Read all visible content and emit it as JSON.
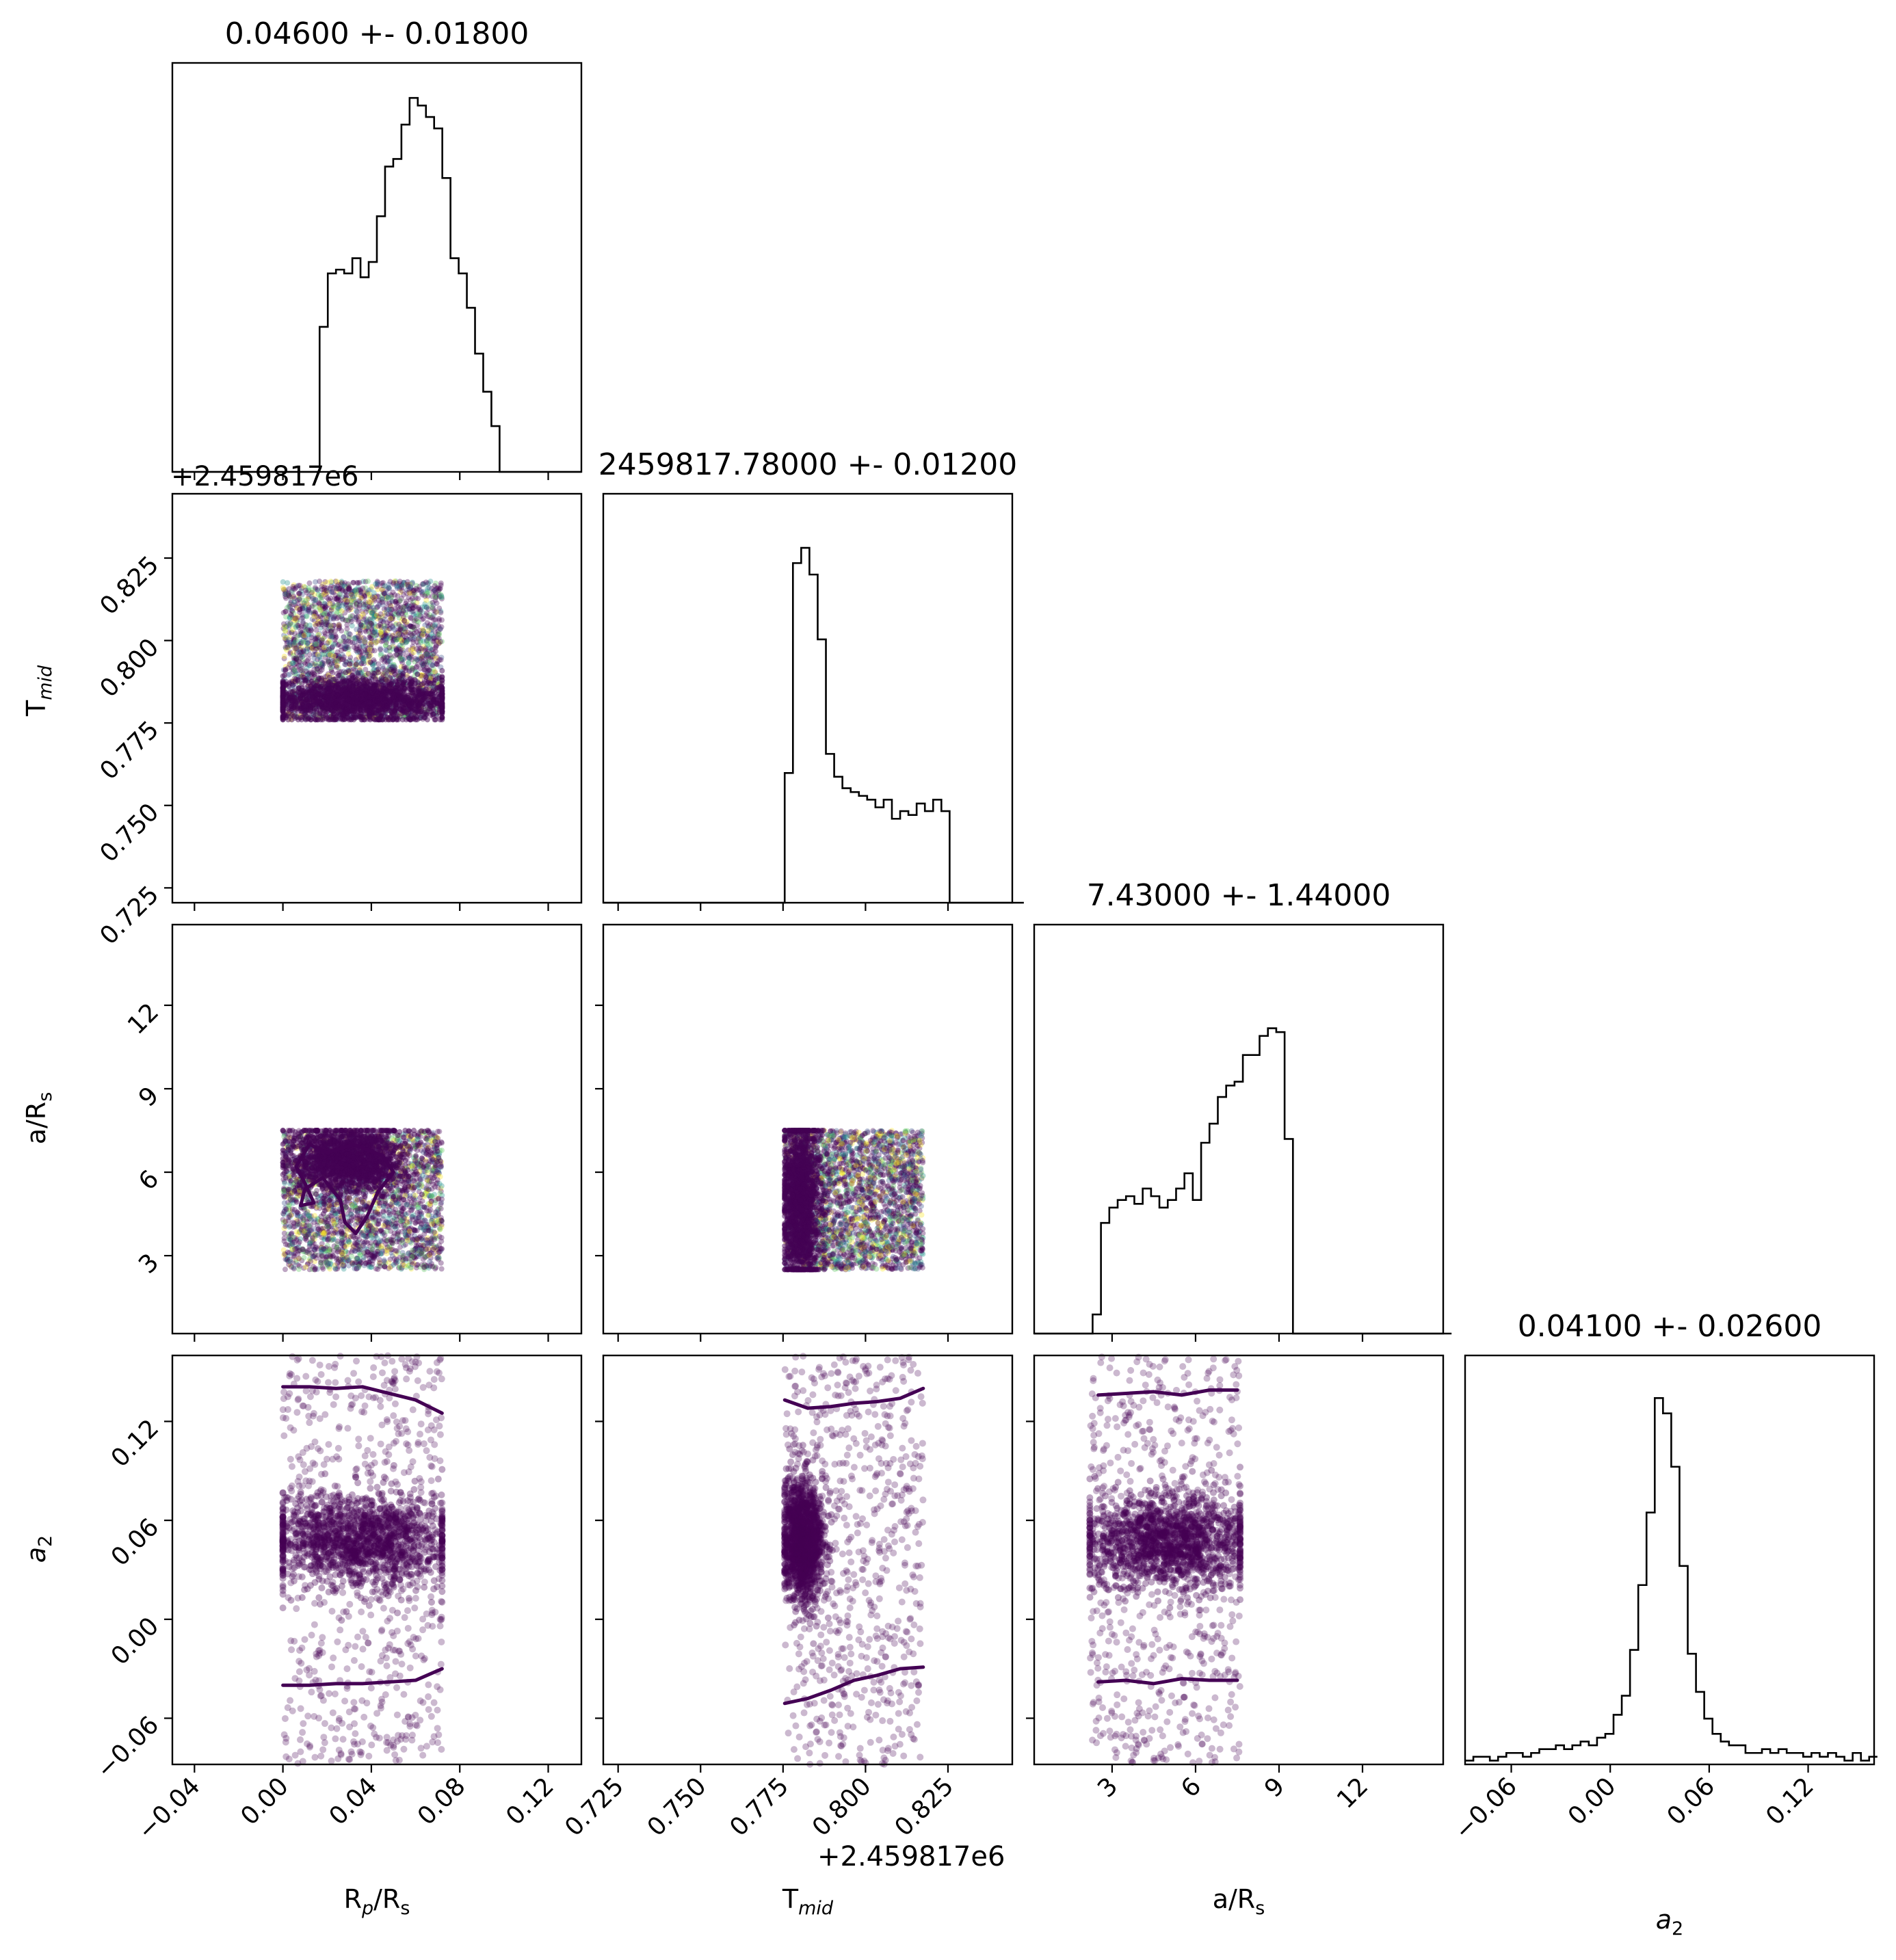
{
  "chart_data": {
    "type": "corner",
    "parameters": [
      {
        "id": "rp",
        "label_main": "R",
        "label_sub1": "p",
        "label_mid": "/R",
        "label_sub2": "s",
        "range": [
          -0.05,
          0.135
        ],
        "ticks": [
          "−0.04",
          "0.00",
          "0.04",
          "0.08",
          "0.12"
        ],
        "tick_values": [
          -0.04,
          0.0,
          0.04,
          0.08,
          0.12
        ]
      },
      {
        "id": "tmid",
        "label_main": "T",
        "label_sub1": "mid",
        "label_mid": "",
        "label_sub2": "",
        "range": [
          0.7205,
          0.8445
        ],
        "ticks": [
          "0.725",
          "0.750",
          "0.775",
          "0.800",
          "0.825"
        ],
        "tick_values": [
          0.725,
          0.75,
          0.775,
          0.8,
          0.825
        ],
        "offset": "+2.459817e6"
      },
      {
        "id": "ars",
        "label_main": "a/R",
        "label_sub1": "",
        "label_mid": "",
        "label_sub2": "s",
        "range": [
          0.2,
          14.9
        ],
        "ticks": [
          "3",
          "6",
          "9",
          "12"
        ],
        "tick_values": [
          3,
          6,
          9,
          12
        ]
      },
      {
        "id": "a2",
        "label_main": "a",
        "label_sub1": "2",
        "label_mid": "",
        "label_sub2": "",
        "range": [
          -0.088,
          0.16
        ],
        "ticks": [
          "−0.06",
          "0.00",
          "0.06",
          "0.12"
        ],
        "tick_values": [
          -0.06,
          0.0,
          0.06,
          0.12
        ],
        "italic": true
      }
    ],
    "titles": [
      "0.04600 +- 0.01800",
      "2459817.78000 +- 0.01200",
      "7.43000 +- 1.44000",
      "0.04100 +- 0.02600"
    ],
    "histograms": [
      {
        "param": "rp",
        "bin_start": -0.05,
        "bin_width": 0.0037,
        "counts": [
          0,
          0,
          0,
          0,
          0,
          0,
          0,
          0,
          0,
          0,
          0,
          0,
          0,
          0,
          0,
          0,
          0,
          0,
          0.38,
          0.52,
          0.53,
          0.52,
          0.56,
          0.51,
          0.55,
          0.67,
          0.8,
          0.82,
          0.91,
          0.98,
          0.96,
          0.93,
          0.9,
          0.77,
          0.56,
          0.52,
          0.43,
          0.31,
          0.21,
          0.12,
          0,
          0,
          0,
          0,
          0,
          0,
          0,
          0,
          0,
          0
        ]
      },
      {
        "param": "tmid",
        "bin_start": 0.7205,
        "bin_width": 0.0025,
        "counts": [
          0,
          0,
          0,
          0,
          0,
          0,
          0,
          0,
          0,
          0,
          0,
          0,
          0,
          0,
          0,
          0,
          0,
          0,
          0,
          0,
          0,
          0,
          0.34,
          0.89,
          0.93,
          0.86,
          0.69,
          0.39,
          0.33,
          0.3,
          0.29,
          0.28,
          0.27,
          0.25,
          0.27,
          0.22,
          0.24,
          0.23,
          0.26,
          0.24,
          0.27,
          0.24,
          0,
          0,
          0,
          0,
          0,
          0,
          0,
          0,
          0
        ]
      },
      {
        "param": "ars",
        "bin_start": 0.2,
        "bin_width": 0.3,
        "counts": [
          0,
          0,
          0,
          0,
          0,
          0,
          0,
          0.05,
          0.29,
          0.33,
          0.35,
          0.36,
          0.34,
          0.38,
          0.36,
          0.33,
          0.35,
          0.38,
          0.42,
          0.35,
          0.5,
          0.55,
          0.62,
          0.65,
          0.66,
          0.73,
          0.73,
          0.78,
          0.8,
          0.79,
          0.51,
          0,
          0,
          0,
          0,
          0,
          0,
          0,
          0,
          0,
          0,
          0,
          0,
          0,
          0,
          0,
          0,
          0,
          0,
          0
        ]
      },
      {
        "param": "a2",
        "bin_start": -0.088,
        "bin_width": 0.005,
        "counts": [
          0.01,
          0.02,
          0.02,
          0.01,
          0.02,
          0.03,
          0.03,
          0.02,
          0.03,
          0.04,
          0.04,
          0.05,
          0.04,
          0.05,
          0.06,
          0.05,
          0.07,
          0.08,
          0.13,
          0.18,
          0.3,
          0.47,
          0.66,
          0.96,
          0.92,
          0.78,
          0.52,
          0.29,
          0.19,
          0.12,
          0.08,
          0.06,
          0.05,
          0.05,
          0.03,
          0.03,
          0.04,
          0.03,
          0.04,
          0.03,
          0.03,
          0.02,
          0.03,
          0.02,
          0.03,
          0.02,
          0.01,
          0.03,
          0.01,
          0.02
        ]
      }
    ],
    "scatter_panels": [
      {
        "x": "rp",
        "y": "tmid",
        "x_range": [
          0.0,
          0.072
        ],
        "y_range": [
          0.776,
          0.818
        ],
        "core": {
          "x": [
            0.0,
            0.07
          ],
          "y": [
            0.777,
            0.787
          ]
        }
      },
      {
        "x": "rp",
        "y": "ars",
        "x_range": [
          0.0,
          0.072
        ],
        "y_range": [
          2.5,
          7.5
        ],
        "core": {
          "x": [
            0.01,
            0.05
          ],
          "y": [
            5.5,
            7.4
          ]
        }
      },
      {
        "x": "tmid",
        "y": "ars",
        "x_range": [
          0.7755,
          0.8175
        ],
        "y_range": [
          2.5,
          7.5
        ],
        "core": {
          "x": [
            0.776,
            0.785
          ],
          "y": [
            2.5,
            7.4
          ]
        }
      },
      {
        "x": "rp",
        "y": "a2",
        "x_range": [
          0.0,
          0.072
        ],
        "y_range": [
          -0.088,
          0.16
        ],
        "core": {
          "x": [
            0.0,
            0.07
          ],
          "y": [
            0.025,
            0.07
          ]
        }
      },
      {
        "x": "tmid",
        "y": "a2",
        "x_range": [
          0.7755,
          0.8175
        ],
        "y_range": [
          -0.088,
          0.16
        ],
        "core": {
          "x": [
            0.776,
            0.786
          ],
          "y": [
            0.02,
            0.075
          ]
        }
      },
      {
        "x": "ars",
        "y": "a2",
        "x_range": [
          2.2,
          7.6
        ],
        "y_range": [
          -0.088,
          0.16
        ],
        "core": {
          "x": [
            2.5,
            7.5
          ],
          "y": [
            0.025,
            0.07
          ]
        }
      }
    ],
    "colors": {
      "points": "#440154",
      "contour": "#440154",
      "axes": "#000000",
      "background": "#ffffff"
    }
  }
}
